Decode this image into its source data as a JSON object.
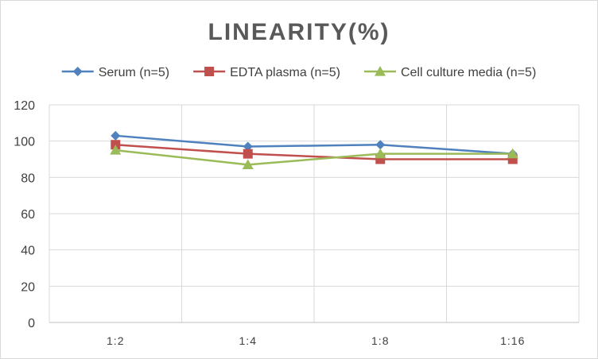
{
  "chart_data": {
    "type": "line",
    "title": "LINEARITY(%)",
    "categories": [
      "1:2",
      "1:4",
      "1:8",
      "1:16"
    ],
    "series": [
      {
        "name": "Serum (n=5)",
        "values": [
          103,
          97,
          98,
          93
        ],
        "color": "#4E81BD",
        "marker": "diamond"
      },
      {
        "name": "EDTA plasma (n=5)",
        "values": [
          98,
          93,
          90,
          90
        ],
        "color": "#C0504D",
        "marker": "square"
      },
      {
        "name": "Cell culture media (n=5)",
        "values": [
          95,
          87,
          93,
          93
        ],
        "color": "#9BBB59",
        "marker": "triangle"
      }
    ],
    "ylim": [
      0,
      120
    ],
    "yticks": [
      0,
      20,
      40,
      60,
      80,
      100,
      120
    ],
    "grid": true,
    "legend": "top"
  }
}
